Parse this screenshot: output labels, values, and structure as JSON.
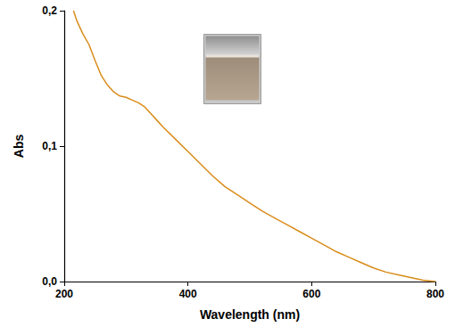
{
  "chart_data": {
    "type": "line",
    "x_label": "Wavelength (nm)",
    "y_label": "Abs",
    "x": [
      215,
      220,
      230,
      240,
      250,
      260,
      270,
      280,
      290,
      300,
      310,
      320,
      330,
      340,
      350,
      360,
      380,
      400,
      420,
      440,
      460,
      480,
      500,
      520,
      540,
      560,
      580,
      600,
      620,
      640,
      660,
      680,
      700,
      720,
      740,
      760,
      780,
      800
    ],
    "values": [
      0.2,
      0.193,
      0.183,
      0.175,
      0.163,
      0.152,
      0.145,
      0.14,
      0.137,
      0.136,
      0.134,
      0.132,
      0.129,
      0.124,
      0.119,
      0.114,
      0.105,
      0.096,
      0.087,
      0.078,
      0.07,
      0.064,
      0.058,
      0.052,
      0.047,
      0.042,
      0.037,
      0.032,
      0.027,
      0.022,
      0.018,
      0.014,
      0.01,
      0.007,
      0.005,
      0.003,
      0.001,
      0.0
    ],
    "color": "#d98c1a",
    "xlim": [
      200,
      800
    ],
    "xticks": [
      200,
      400,
      600,
      800
    ],
    "ylim": [
      0,
      0.2
    ],
    "yticks": [
      {
        "value": 0,
        "label": "0,0"
      },
      {
        "value": 0.1,
        "label": "0,1"
      },
      {
        "value": 0.2,
        "label": "0,2"
      }
    ],
    "grid": false
  }
}
